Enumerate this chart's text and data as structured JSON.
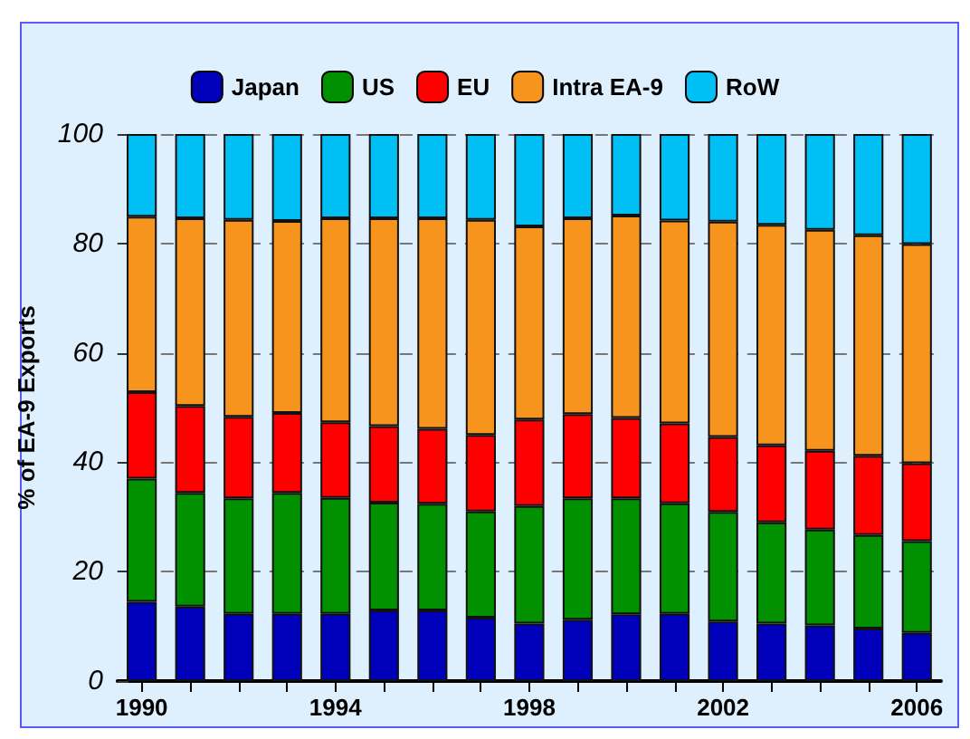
{
  "chart_data": {
    "type": "bar",
    "stacked": true,
    "ylabel": "% of EA-9 Exports",
    "categories": [
      "1990",
      null,
      null,
      null,
      "1994",
      null,
      null,
      null,
      "1998",
      null,
      null,
      null,
      "2002",
      null,
      null,
      null,
      "2006"
    ],
    "series": [
      {
        "name": "Japan",
        "color": "#0000bb",
        "values": [
          14.5,
          13.6,
          12.3,
          12.3,
          12.3,
          12.9,
          12.9,
          11.6,
          10.5,
          11.2,
          12.2,
          12.3,
          10.9,
          10.5,
          10.2,
          9.6,
          8.8
        ]
      },
      {
        "name": "US",
        "color": "#009000",
        "values": [
          22.5,
          20.8,
          21.1,
          22.1,
          21.2,
          19.7,
          19.5,
          19.4,
          21.5,
          22.2,
          21.2,
          20.2,
          20.0,
          18.5,
          17.5,
          17.1,
          16.8
        ]
      },
      {
        "name": "EU",
        "color": "#ff0000",
        "values": [
          15.8,
          15.9,
          14.9,
          14.6,
          13.8,
          14.0,
          13.7,
          14.0,
          15.8,
          15.4,
          14.7,
          14.6,
          13.7,
          14.1,
          14.4,
          14.5,
          14.2
        ]
      },
      {
        "name": "Intra EA-9",
        "color": "#f7941d",
        "values": [
          32.1,
          34.3,
          36.0,
          35.1,
          37.3,
          38.0,
          38.5,
          39.3,
          35.3,
          35.8,
          37.0,
          37.1,
          39.4,
          40.3,
          40.4,
          40.3,
          40.1
        ]
      },
      {
        "name": "RoW",
        "color": "#00bff5",
        "values": [
          15.1,
          15.4,
          15.7,
          15.9,
          15.4,
          15.4,
          15.4,
          15.7,
          16.9,
          15.4,
          14.9,
          15.8,
          16.0,
          16.6,
          17.5,
          18.5,
          20.1
        ]
      }
    ],
    "ylim": [
      0,
      100
    ],
    "yticks": [
      0,
      20,
      40,
      60,
      80,
      100
    ],
    "grid": "y",
    "legend": "top"
  }
}
